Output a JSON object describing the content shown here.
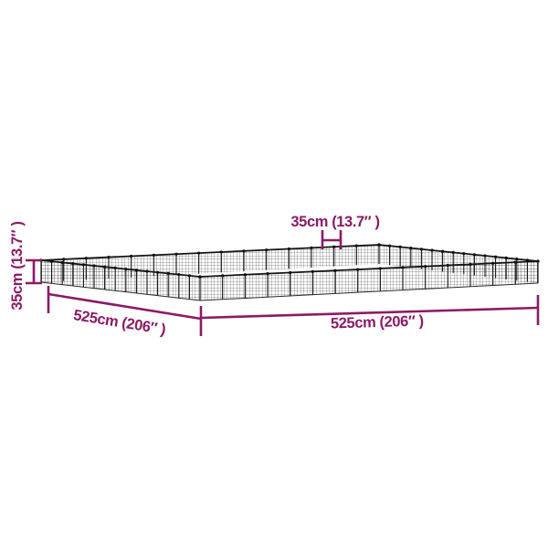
{
  "image": {
    "type": "product-dimension-diagram",
    "subject": "black wire-mesh pet playpen enclosure shown in flat perspective",
    "background_color": "#ffffff"
  },
  "colors": {
    "dimension_accent": "#8C1A66",
    "mesh_wire": "#454545",
    "frame_black": "#151515"
  },
  "dimensions": {
    "panel_width": {
      "label": "35cm (13.7″ )"
    },
    "wall_height": {
      "label": "35cm (13.7″ )"
    },
    "side_left": {
      "label": "525cm (206″ )"
    },
    "side_front": {
      "label": "525cm (206″ )"
    }
  }
}
